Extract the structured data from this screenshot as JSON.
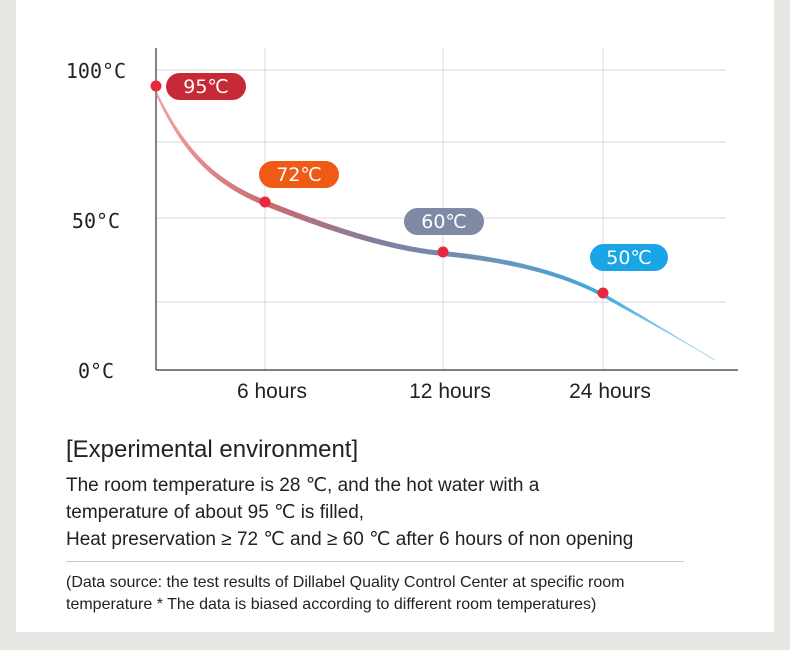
{
  "chart_data": {
    "type": "line",
    "x": [
      "",
      "6 hours",
      "12 hours",
      "24 hours"
    ],
    "values": [
      95,
      72,
      60,
      50
    ],
    "point_labels": [
      "95℃",
      "72℃",
      "60℃",
      "50℃"
    ],
    "ytick_labels": [
      "100°C",
      "50°C",
      "0°C"
    ],
    "yticks": [
      100,
      50,
      0
    ],
    "xtick_labels": [
      "6 hours",
      "12 hours",
      "24 hours"
    ],
    "title": "",
    "xlabel": "",
    "ylabel": "",
    "grid": true,
    "legend": "none",
    "label_colors": [
      "#c72a37",
      "#ef5a17",
      "#8089a3",
      "#1aa5e6"
    ],
    "point_color": "#e8283c",
    "line_gradient": [
      "#f3a0a0",
      "#c96a70",
      "#7f7f9e",
      "#6c93b8",
      "#41a9dd",
      "#c6e6f6"
    ]
  },
  "environment": {
    "title": "[Experimental environment]",
    "lines": [
      "The room temperature is 28 ℃, and the hot water with a",
      "temperature of about 95 ℃ is filled,",
      "Heat preservation ≥ 72 ℃ and ≥ 60 ℃ after 6 hours of non opening"
    ]
  },
  "source_note": {
    "lines": [
      "(Data source: the test results of Dillabel Quality Control Center at specific room",
      "temperature * The data is biased according to different room temperatures)"
    ]
  }
}
